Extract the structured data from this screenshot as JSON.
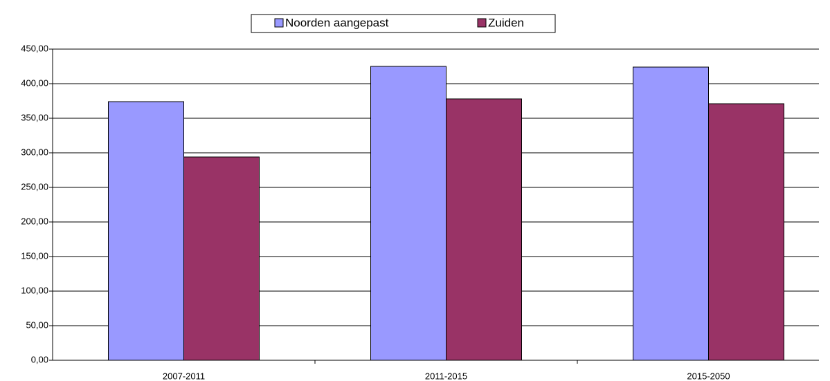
{
  "chart_data": {
    "type": "bar",
    "categories": [
      "2007-2011",
      "2011-2015",
      "2015-2050"
    ],
    "series": [
      {
        "name": "Noorden aangepast",
        "color": "#9999ff",
        "values": [
          374,
          425,
          424
        ]
      },
      {
        "name": "Zuiden",
        "color": "#993366",
        "values": [
          294,
          378,
          371
        ]
      }
    ],
    "ylim": [
      0,
      450
    ],
    "yticks": [
      {
        "value": 0,
        "label": "0,00"
      },
      {
        "value": 50,
        "label": "50,00"
      },
      {
        "value": 100,
        "label": "100,00"
      },
      {
        "value": 150,
        "label": "150,00"
      },
      {
        "value": 200,
        "label": "200,00"
      },
      {
        "value": 250,
        "label": "250,00"
      },
      {
        "value": 300,
        "label": "300,00"
      },
      {
        "value": 350,
        "label": "350,00"
      },
      {
        "value": 400,
        "label": "400,00"
      },
      {
        "value": 450,
        "label": "450,00"
      }
    ],
    "grid": true,
    "legend": "top"
  }
}
